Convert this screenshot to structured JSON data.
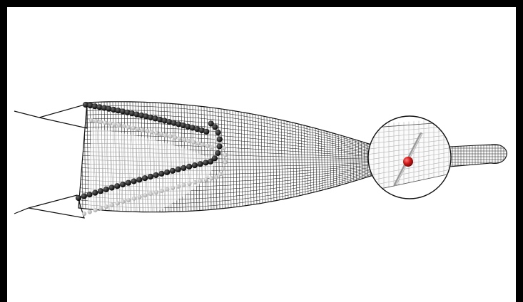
{
  "figure": {
    "caption": "",
    "colors": {
      "frame": "#000000",
      "background": "#ffffff",
      "mesh_dark": "#1a1a1a",
      "mesh_light": "#8a8a8a",
      "bead_dark": "#111111",
      "bead_light": "#bdbdbd",
      "sphere": "#d01818",
      "plate": "#9a9a9a"
    },
    "icons": [
      "magnifier-lens-icon",
      "red-sphere-icon"
    ]
  }
}
